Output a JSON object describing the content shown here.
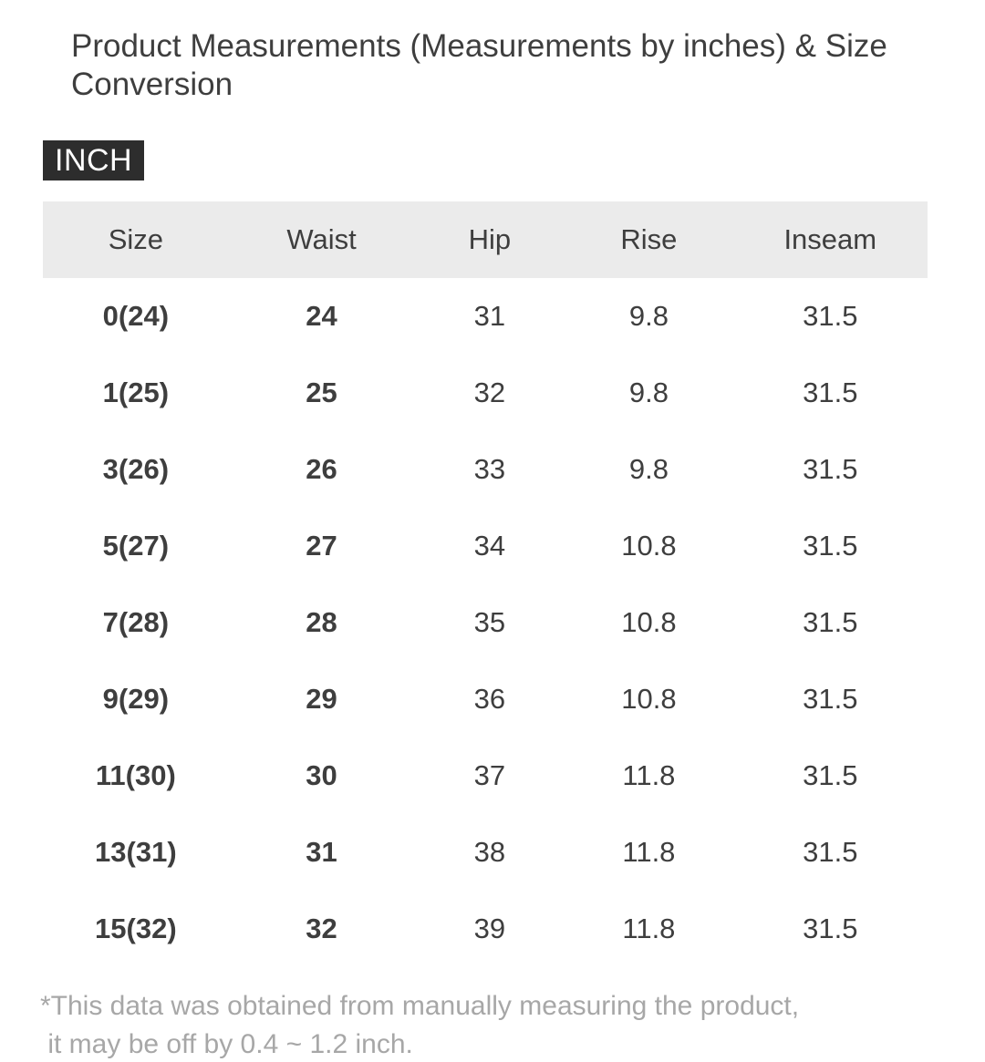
{
  "page": {
    "title": "Product Measurements (Measurements by inches) & Size Conversion",
    "unit_badge": "INCH",
    "footnote_lines": [
      "*This data was obtained from manually measuring the product,",
      " it may be off by 0.4 ~ 1.2 inch."
    ]
  },
  "table": {
    "columns": [
      "Size",
      "Waist",
      "Hip",
      "Rise",
      "Inseam"
    ],
    "rows": [
      [
        "0(24)",
        "24",
        "31",
        "9.8",
        "31.5"
      ],
      [
        "1(25)",
        "25",
        "32",
        "9.8",
        "31.5"
      ],
      [
        "3(26)",
        "26",
        "33",
        "9.8",
        "31.5"
      ],
      [
        "5(27)",
        "27",
        "34",
        "10.8",
        "31.5"
      ],
      [
        "7(28)",
        "28",
        "35",
        "10.8",
        "31.5"
      ],
      [
        "9(29)",
        "29",
        "36",
        "10.8",
        "31.5"
      ],
      [
        "11(30)",
        "30",
        "37",
        "11.8",
        "31.5"
      ],
      [
        "13(31)",
        "31",
        "38",
        "11.8",
        "31.5"
      ],
      [
        "15(32)",
        "32",
        "39",
        "11.8",
        "31.5"
      ]
    ]
  },
  "colors": {
    "badge_bg": "#2d2d2d",
    "badge_text": "#ffffff",
    "table_header_bg": "#ebebeb",
    "body_text": "#3e3e3e",
    "footnote_text": "#a7a7a7"
  }
}
